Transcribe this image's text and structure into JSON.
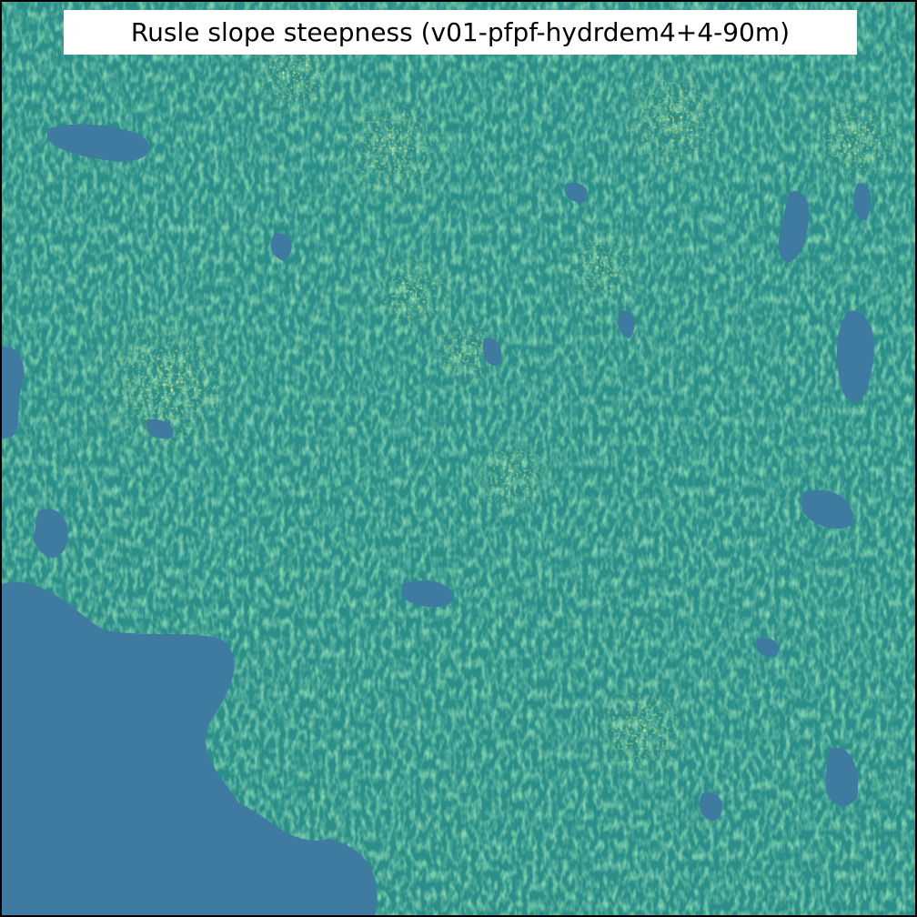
{
  "title": "Rusle slope steepness (v01-pfpf-hydrdem4+4-90m)",
  "map": {
    "kind": "raster",
    "colormap": "viridis",
    "palette": {
      "water": "#3f7aa0",
      "low": "#2a8c8c",
      "mid": "#25a882",
      "high": "#5ec962",
      "peak": "#fde725"
    }
  }
}
